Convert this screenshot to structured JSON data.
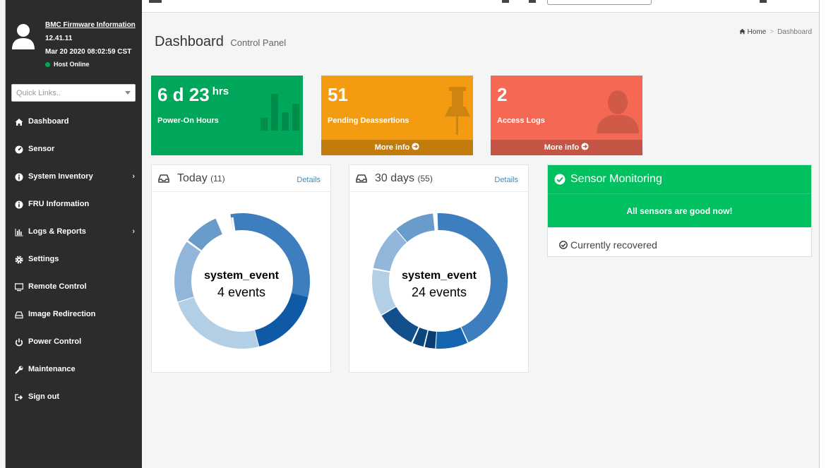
{
  "sidebar": {
    "bmc_title": "BMC Firmware Information",
    "version": "12.41.11",
    "date": "Mar 20 2020 08:02:59 CST",
    "host_status": "Host Online",
    "quick_links_placeholder": "Quick Links..",
    "items": [
      {
        "label": "Dashboard",
        "icon": "home-icon"
      },
      {
        "label": "Sensor",
        "icon": "dashboard-gauge-icon"
      },
      {
        "label": "System Inventory",
        "icon": "info-circle-icon",
        "has_children": true
      },
      {
        "label": "FRU Information",
        "icon": "info-circle-icon"
      },
      {
        "label": "Logs & Reports",
        "icon": "bar-chart-icon",
        "has_children": true
      },
      {
        "label": "Settings",
        "icon": "gear-icon"
      },
      {
        "label": "Remote Control",
        "icon": "monitor-icon"
      },
      {
        "label": "Image Redirection",
        "icon": "drive-icon"
      },
      {
        "label": "Power Control",
        "icon": "power-icon"
      },
      {
        "label": "Maintenance",
        "icon": "wrench-icon"
      },
      {
        "label": "Sign out",
        "icon": "sign-out-icon"
      }
    ]
  },
  "header": {
    "title": "Dashboard",
    "subtitle": "Control Panel",
    "breadcrumb_home": "Home",
    "breadcrumb_current": "Dashboard"
  },
  "boxes": {
    "power_on": {
      "value": "6 d 23",
      "unit": "hrs",
      "label": "Power-On Hours",
      "color": "#00a65a"
    },
    "pending": {
      "value": "51",
      "label": "Pending Deassertions",
      "more": "More info",
      "color": "#f39c12"
    },
    "access": {
      "value": "2",
      "label": "Access Logs",
      "more": "More info",
      "color": "#f56954"
    }
  },
  "panels": {
    "today": {
      "title": "Today",
      "count": "(11)",
      "details": "Details",
      "center_a": "system_event",
      "center_b": "4 events"
    },
    "thirty": {
      "title": "30 days",
      "count": "(55)",
      "details": "Details",
      "center_a": "system_event",
      "center_b": "24 events"
    }
  },
  "sensor": {
    "title": "Sensor Monitoring",
    "message": "All sensors are good now!",
    "footer": "Currently recovered",
    "color": "#00c060"
  }
}
